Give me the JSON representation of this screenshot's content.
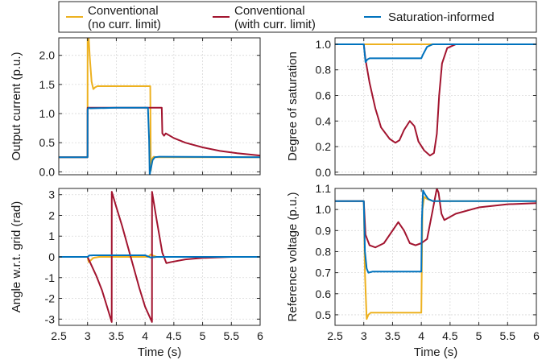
{
  "legend": {
    "items": [
      {
        "line1": "Conventional",
        "line2": "(no curr. limit)",
        "color": "#EDB120"
      },
      {
        "line1": "Conventional",
        "line2": "(with curr. limit)",
        "color": "#A2142F"
      },
      {
        "line1": "Saturation-informed",
        "line2": "",
        "color": "#0072BD"
      }
    ]
  },
  "chart_data": [
    {
      "type": "line",
      "ylabel": "Output current (p.u.)",
      "xlabel": "",
      "xlim": [
        2.5,
        6
      ],
      "ylim": [
        -0.05,
        2.3
      ],
      "yticks": [
        0,
        0.5,
        1,
        1.5,
        2
      ],
      "ytick_labels": [
        "0.0",
        "0.5",
        "1.0",
        "1.5",
        "2.0"
      ],
      "xticks": [
        2.5,
        3,
        3.5,
        4,
        4.5,
        5,
        5.5,
        6
      ],
      "xtick_labels": [],
      "grid": true,
      "series": [
        {
          "name": "Conventional (no curr. limit)",
          "color": "#EDB120",
          "points": [
            [
              2.5,
              0.25
            ],
            [
              2.99,
              0.25
            ],
            [
              3.0,
              0.25
            ],
            [
              3.001,
              2.3
            ],
            [
              3.02,
              2.3
            ],
            [
              3.04,
              1.95
            ],
            [
              3.07,
              1.55
            ],
            [
              3.1,
              1.42
            ],
            [
              3.13,
              1.45
            ],
            [
              3.17,
              1.47
            ],
            [
              3.25,
              1.47
            ],
            [
              3.5,
              1.47
            ],
            [
              4.0,
              1.47
            ],
            [
              4.09,
              1.47
            ],
            [
              4.1,
              0.02
            ],
            [
              4.12,
              0.22
            ],
            [
              4.15,
              0.26
            ],
            [
              4.2,
              0.25
            ],
            [
              6,
              0.25
            ]
          ]
        },
        {
          "name": "Conventional (with curr. limit)",
          "color": "#A2142F",
          "points": [
            [
              2.5,
              0.25
            ],
            [
              2.99,
              0.25
            ],
            [
              3.0,
              0.25
            ],
            [
              3.001,
              1.1
            ],
            [
              3.5,
              1.1
            ],
            [
              4.0,
              1.1
            ],
            [
              4.29,
              1.1
            ],
            [
              4.3,
              0.66
            ],
            [
              4.33,
              0.62
            ],
            [
              4.36,
              0.66
            ],
            [
              4.5,
              0.58
            ],
            [
              4.7,
              0.5
            ],
            [
              5.0,
              0.42
            ],
            [
              5.3,
              0.36
            ],
            [
              5.6,
              0.32
            ],
            [
              6.0,
              0.28
            ]
          ]
        },
        {
          "name": "Saturation-informed",
          "color": "#0072BD",
          "points": [
            [
              2.5,
              0.25
            ],
            [
              2.99,
              0.25
            ],
            [
              3.0,
              0.25
            ],
            [
              3.001,
              1.07
            ],
            [
              3.02,
              1.1
            ],
            [
              3.05,
              1.09
            ],
            [
              3.5,
              1.1
            ],
            [
              4.0,
              1.1
            ],
            [
              4.05,
              1.1
            ],
            [
              4.07,
              0.55
            ],
            [
              4.08,
              -0.05
            ],
            [
              4.1,
              0.05
            ],
            [
              4.13,
              0.2
            ],
            [
              4.17,
              0.25
            ],
            [
              4.25,
              0.26
            ],
            [
              6,
              0.25
            ]
          ]
        }
      ]
    },
    {
      "type": "line",
      "ylabel": "Degree of saturation",
      "xlabel": "",
      "xlim": [
        2.5,
        6
      ],
      "ylim": [
        -0.02,
        1.05
      ],
      "yticks": [
        0,
        0.2,
        0.4,
        0.6,
        0.8,
        1.0
      ],
      "ytick_labels": [
        "0.0",
        "0.2",
        "0.4",
        "0.6",
        "0.8",
        "1.0"
      ],
      "xticks": [
        2.5,
        3,
        3.5,
        4,
        4.5,
        5,
        5.5,
        6
      ],
      "xtick_labels": [],
      "grid": true,
      "series": [
        {
          "name": "Conventional (no curr. limit)",
          "color": "#EDB120",
          "points": [
            [
              2.5,
              1.0
            ],
            [
              6,
              1.0
            ]
          ]
        },
        {
          "name": "Conventional (with curr. limit)",
          "color": "#A2142F",
          "points": [
            [
              2.5,
              1.0
            ],
            [
              3.0,
              1.0
            ],
            [
              3.03,
              0.88
            ],
            [
              3.1,
              0.7
            ],
            [
              3.2,
              0.5
            ],
            [
              3.3,
              0.35
            ],
            [
              3.45,
              0.26
            ],
            [
              3.55,
              0.23
            ],
            [
              3.62,
              0.25
            ],
            [
              3.7,
              0.33
            ],
            [
              3.8,
              0.4
            ],
            [
              3.88,
              0.36
            ],
            [
              3.95,
              0.24
            ],
            [
              4.05,
              0.17
            ],
            [
              4.15,
              0.13
            ],
            [
              4.22,
              0.15
            ],
            [
              4.27,
              0.3
            ],
            [
              4.31,
              0.6
            ],
            [
              4.36,
              0.85
            ],
            [
              4.45,
              0.97
            ],
            [
              4.6,
              1.0
            ],
            [
              6,
              1.0
            ]
          ]
        },
        {
          "name": "Saturation-informed",
          "color": "#0072BD",
          "points": [
            [
              2.5,
              1.0
            ],
            [
              3.0,
              1.0
            ],
            [
              3.03,
              0.86
            ],
            [
              3.06,
              0.88
            ],
            [
              3.1,
              0.89
            ],
            [
              4.0,
              0.89
            ],
            [
              4.03,
              0.92
            ],
            [
              4.1,
              0.98
            ],
            [
              4.2,
              1.0
            ],
            [
              6,
              1.0
            ]
          ]
        }
      ]
    },
    {
      "type": "line",
      "ylabel": "Angle w.r.t. grid (rad)",
      "xlabel": "Time (s)",
      "xlim": [
        2.5,
        6
      ],
      "ylim": [
        -3.3,
        3.3
      ],
      "yticks": [
        -3,
        -2,
        -1,
        0,
        1,
        2,
        3
      ],
      "ytick_labels": [
        "-3",
        "-2",
        "-1",
        "0",
        "1",
        "2",
        "3"
      ],
      "xticks": [
        2.5,
        3,
        3.5,
        4,
        4.5,
        5,
        5.5,
        6
      ],
      "xtick_labels": [
        "2.5",
        "3",
        "3.5",
        "4",
        "4.5",
        "5",
        "5.5",
        "6"
      ],
      "grid": true,
      "series": [
        {
          "name": "Conventional (no curr. limit)",
          "color": "#EDB120",
          "points": [
            [
              2.5,
              0
            ],
            [
              3.0,
              0
            ],
            [
              3.02,
              -0.25
            ],
            [
              3.05,
              -0.18
            ],
            [
              3.1,
              -0.05
            ],
            [
              3.2,
              0.0
            ],
            [
              4.05,
              0.0
            ],
            [
              4.1,
              0.12
            ],
            [
              4.15,
              0.05
            ],
            [
              4.2,
              0
            ],
            [
              6,
              0
            ]
          ]
        },
        {
          "name": "Conventional (with curr. limit)",
          "color": "#A2142F",
          "points": [
            [
              2.5,
              0
            ],
            [
              3.0,
              0
            ],
            [
              3.05,
              -0.3
            ],
            [
              3.15,
              -0.9
            ],
            [
              3.25,
              -1.6
            ],
            [
              3.35,
              -2.5
            ],
            [
              3.42,
              -3.14
            ],
            [
              3.421,
              3.14
            ],
            [
              3.5,
              2.4
            ],
            [
              3.6,
              1.5
            ],
            [
              3.7,
              0.5
            ],
            [
              3.8,
              -0.5
            ],
            [
              3.9,
              -1.5
            ],
            [
              4.0,
              -2.4
            ],
            [
              4.12,
              -3.14
            ],
            [
              4.121,
              3.14
            ],
            [
              4.2,
              1.8
            ],
            [
              4.3,
              0.2
            ],
            [
              4.37,
              -0.3
            ],
            [
              4.45,
              -0.25
            ],
            [
              4.7,
              -0.12
            ],
            [
              5.0,
              -0.05
            ],
            [
              5.5,
              0
            ],
            [
              6,
              0
            ]
          ]
        },
        {
          "name": "Saturation-informed",
          "color": "#0072BD",
          "points": [
            [
              2.5,
              0
            ],
            [
              3.0,
              0
            ],
            [
              3.03,
              0.07
            ],
            [
              3.1,
              0.08
            ],
            [
              4.0,
              0.08
            ],
            [
              4.05,
              0.02
            ],
            [
              4.1,
              -0.03
            ],
            [
              4.2,
              0
            ],
            [
              6,
              0
            ]
          ]
        }
      ]
    },
    {
      "type": "line",
      "ylabel": "Reference voltage (p.u.)",
      "xlabel": "Time (s)",
      "xlim": [
        2.5,
        6
      ],
      "ylim": [
        0.45,
        1.1
      ],
      "yticks": [
        0.5,
        0.6,
        0.7,
        0.8,
        0.9,
        1.0,
        1.1
      ],
      "ytick_labels": [
        "0.5",
        "0.6",
        "0.7",
        "0.8",
        "0.9",
        "1.0",
        "1.1"
      ],
      "xticks": [
        2.5,
        3,
        3.5,
        4,
        4.5,
        5,
        5.5,
        6
      ],
      "xtick_labels": [
        "2.5",
        "3",
        "3.5",
        "4",
        "4.5",
        "5",
        "5.5",
        "6"
      ],
      "grid": true,
      "series": [
        {
          "name": "Conventional (no curr. limit)",
          "color": "#EDB120",
          "points": [
            [
              2.5,
              1.04
            ],
            [
              3.0,
              1.04
            ],
            [
              3.02,
              0.7
            ],
            [
              3.05,
              0.48
            ],
            [
              3.08,
              0.5
            ],
            [
              3.12,
              0.51
            ],
            [
              4.0,
              0.51
            ],
            [
              4.02,
              1.0
            ],
            [
              4.05,
              1.06
            ],
            [
              4.1,
              1.05
            ],
            [
              4.2,
              1.04
            ],
            [
              6,
              1.04
            ]
          ]
        },
        {
          "name": "Conventional (with curr. limit)",
          "color": "#A2142F",
          "points": [
            [
              2.5,
              1.04
            ],
            [
              3.0,
              1.04
            ],
            [
              3.03,
              0.88
            ],
            [
              3.1,
              0.83
            ],
            [
              3.2,
              0.82
            ],
            [
              3.35,
              0.84
            ],
            [
              3.5,
              0.9
            ],
            [
              3.6,
              0.94
            ],
            [
              3.7,
              0.9
            ],
            [
              3.8,
              0.84
            ],
            [
              3.9,
              0.83
            ],
            [
              4.0,
              0.84
            ],
            [
              4.1,
              0.86
            ],
            [
              4.2,
              1.0
            ],
            [
              4.27,
              1.1
            ],
            [
              4.3,
              1.08
            ],
            [
              4.35,
              0.98
            ],
            [
              4.4,
              0.95
            ],
            [
              4.6,
              0.98
            ],
            [
              5.0,
              1.01
            ],
            [
              5.5,
              1.025
            ],
            [
              6,
              1.03
            ]
          ]
        },
        {
          "name": "Saturation-informed",
          "color": "#0072BD",
          "points": [
            [
              2.5,
              1.04
            ],
            [
              3.0,
              1.04
            ],
            [
              3.02,
              0.8
            ],
            [
              3.05,
              0.72
            ],
            [
              3.08,
              0.7
            ],
            [
              3.15,
              0.705
            ],
            [
              4.0,
              0.705
            ],
            [
              4.01,
              0.95
            ],
            [
              4.03,
              1.09
            ],
            [
              4.07,
              1.07
            ],
            [
              4.12,
              1.05
            ],
            [
              4.2,
              1.04
            ],
            [
              6,
              1.04
            ]
          ]
        }
      ]
    }
  ]
}
